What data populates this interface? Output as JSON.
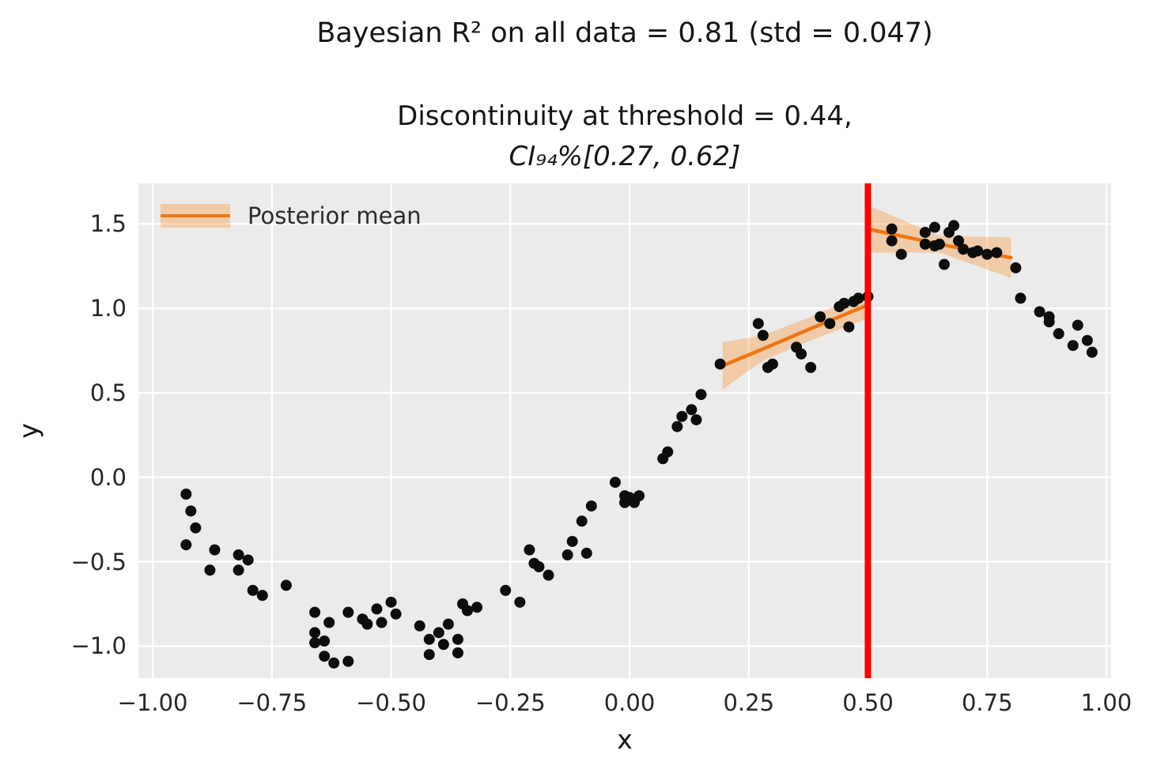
{
  "chart_data": {
    "type": "scatter",
    "title": "Bayesian R² on all data = 0.81 (std = 0.047)",
    "subtitle_line1": "Discontinuity at threshold = 0.44,",
    "subtitle_line2": "CI₉₄%[0.27, 0.62]",
    "xlabel": "x",
    "ylabel": "y",
    "xlim": [
      -1.03,
      1.01
    ],
    "ylim": [
      -1.19,
      1.74
    ],
    "grid": true,
    "plot_bg": "#ebebeb",
    "grid_color": "#ffffff",
    "legend": {
      "label": "Posterior mean",
      "position": "upper left"
    },
    "threshold": {
      "x": 0.5,
      "color": "#ff0000"
    },
    "colors": {
      "point": "#0d0d0d",
      "line": "#ee7611",
      "band": "#ff7f0e",
      "band_opacity": 0.3,
      "threshold": "#ff0000"
    },
    "xticks": [
      {
        "v": -1.0,
        "label": "−1.00"
      },
      {
        "v": -0.75,
        "label": "−0.75"
      },
      {
        "v": -0.5,
        "label": "−0.50"
      },
      {
        "v": -0.25,
        "label": "−0.25"
      },
      {
        "v": 0.0,
        "label": "0.00"
      },
      {
        "v": 0.25,
        "label": "0.25"
      },
      {
        "v": 0.5,
        "label": "0.50"
      },
      {
        "v": 0.75,
        "label": "0.75"
      },
      {
        "v": 1.0,
        "label": "1.00"
      }
    ],
    "yticks": [
      {
        "v": -1.0,
        "label": "−1.0"
      },
      {
        "v": -0.5,
        "label": "−0.5"
      },
      {
        "v": 0.0,
        "label": "0.0"
      },
      {
        "v": 0.5,
        "label": "0.5"
      },
      {
        "v": 1.0,
        "label": "1.0"
      },
      {
        "v": 1.5,
        "label": "1.5"
      }
    ],
    "points": [
      [
        -0.93,
        -0.1
      ],
      [
        -0.92,
        -0.2
      ],
      [
        -0.91,
        -0.3
      ],
      [
        -0.93,
        -0.4
      ],
      [
        -0.87,
        -0.43
      ],
      [
        -0.88,
        -0.55
      ],
      [
        -0.82,
        -0.46
      ],
      [
        -0.8,
        -0.49
      ],
      [
        -0.82,
        -0.55
      ],
      [
        -0.79,
        -0.67
      ],
      [
        -0.77,
        -0.7
      ],
      [
        -0.72,
        -0.64
      ],
      [
        -0.66,
        -0.8
      ],
      [
        -0.66,
        -0.92
      ],
      [
        -0.66,
        -0.98
      ],
      [
        -0.64,
        -1.06
      ],
      [
        -0.63,
        -0.86
      ],
      [
        -0.64,
        -0.97
      ],
      [
        -0.62,
        -1.1
      ],
      [
        -0.59,
        -1.09
      ],
      [
        -0.59,
        -0.8
      ],
      [
        -0.56,
        -0.84
      ],
      [
        -0.55,
        -0.87
      ],
      [
        -0.53,
        -0.78
      ],
      [
        -0.52,
        -0.86
      ],
      [
        -0.5,
        -0.74
      ],
      [
        -0.49,
        -0.81
      ],
      [
        -0.44,
        -0.88
      ],
      [
        -0.42,
        -0.96
      ],
      [
        -0.42,
        -1.05
      ],
      [
        -0.4,
        -0.92
      ],
      [
        -0.39,
        -0.99
      ],
      [
        -0.38,
        -0.87
      ],
      [
        -0.36,
        -0.96
      ],
      [
        -0.36,
        -1.04
      ],
      [
        -0.35,
        -0.75
      ],
      [
        -0.34,
        -0.79
      ],
      [
        -0.32,
        -0.77
      ],
      [
        -0.26,
        -0.67
      ],
      [
        -0.23,
        -0.74
      ],
      [
        -0.21,
        -0.43
      ],
      [
        -0.2,
        -0.51
      ],
      [
        -0.19,
        -0.53
      ],
      [
        -0.17,
        -0.58
      ],
      [
        -0.13,
        -0.46
      ],
      [
        -0.12,
        -0.38
      ],
      [
        -0.1,
        -0.26
      ],
      [
        -0.09,
        -0.45
      ],
      [
        -0.08,
        -0.17
      ],
      [
        -0.03,
        -0.03
      ],
      [
        -0.01,
        -0.11
      ],
      [
        -0.01,
        -0.15
      ],
      [
        0.0,
        -0.12
      ],
      [
        0.01,
        -0.15
      ],
      [
        0.02,
        -0.11
      ],
      [
        0.07,
        0.11
      ],
      [
        0.08,
        0.15
      ],
      [
        0.1,
        0.3
      ],
      [
        0.11,
        0.36
      ],
      [
        0.13,
        0.4
      ],
      [
        0.14,
        0.34
      ],
      [
        0.15,
        0.49
      ],
      [
        0.19,
        0.67
      ],
      [
        0.27,
        0.91
      ],
      [
        0.28,
        0.84
      ],
      [
        0.29,
        0.65
      ],
      [
        0.3,
        0.67
      ],
      [
        0.35,
        0.77
      ],
      [
        0.36,
        0.73
      ],
      [
        0.38,
        0.65
      ],
      [
        0.4,
        0.95
      ],
      [
        0.42,
        0.91
      ],
      [
        0.44,
        1.01
      ],
      [
        0.45,
        1.03
      ],
      [
        0.46,
        0.89
      ],
      [
        0.47,
        1.04
      ],
      [
        0.48,
        1.06
      ],
      [
        0.5,
        1.07
      ],
      [
        0.55,
        1.47
      ],
      [
        0.55,
        1.4
      ],
      [
        0.57,
        1.32
      ],
      [
        0.62,
        1.45
      ],
      [
        0.62,
        1.38
      ],
      [
        0.64,
        1.37
      ],
      [
        0.64,
        1.48
      ],
      [
        0.65,
        1.38
      ],
      [
        0.66,
        1.26
      ],
      [
        0.67,
        1.45
      ],
      [
        0.68,
        1.49
      ],
      [
        0.69,
        1.4
      ],
      [
        0.7,
        1.35
      ],
      [
        0.72,
        1.33
      ],
      [
        0.73,
        1.34
      ],
      [
        0.75,
        1.32
      ],
      [
        0.77,
        1.33
      ],
      [
        0.81,
        1.24
      ],
      [
        0.82,
        1.06
      ],
      [
        0.86,
        0.98
      ],
      [
        0.88,
        0.95
      ],
      [
        0.88,
        0.92
      ],
      [
        0.9,
        0.85
      ],
      [
        0.93,
        0.78
      ],
      [
        0.94,
        0.9
      ],
      [
        0.96,
        0.81
      ],
      [
        0.97,
        0.74
      ]
    ],
    "segments": [
      {
        "name": "posterior-mean-left",
        "x": [
          0.195,
          0.28,
          0.38,
          0.5
        ],
        "mean": [
          0.66,
          0.76,
          0.88,
          1.02
        ],
        "upper": [
          0.8,
          0.84,
          0.95,
          1.1
        ],
        "lower": [
          0.52,
          0.69,
          0.81,
          0.94
        ]
      },
      {
        "name": "posterior-mean-right",
        "x": [
          0.5,
          0.65,
          0.8
        ],
        "mean": [
          1.47,
          1.38,
          1.3
        ],
        "upper": [
          1.61,
          1.43,
          1.42
        ],
        "lower": [
          1.33,
          1.33,
          1.18
        ]
      }
    ]
  }
}
